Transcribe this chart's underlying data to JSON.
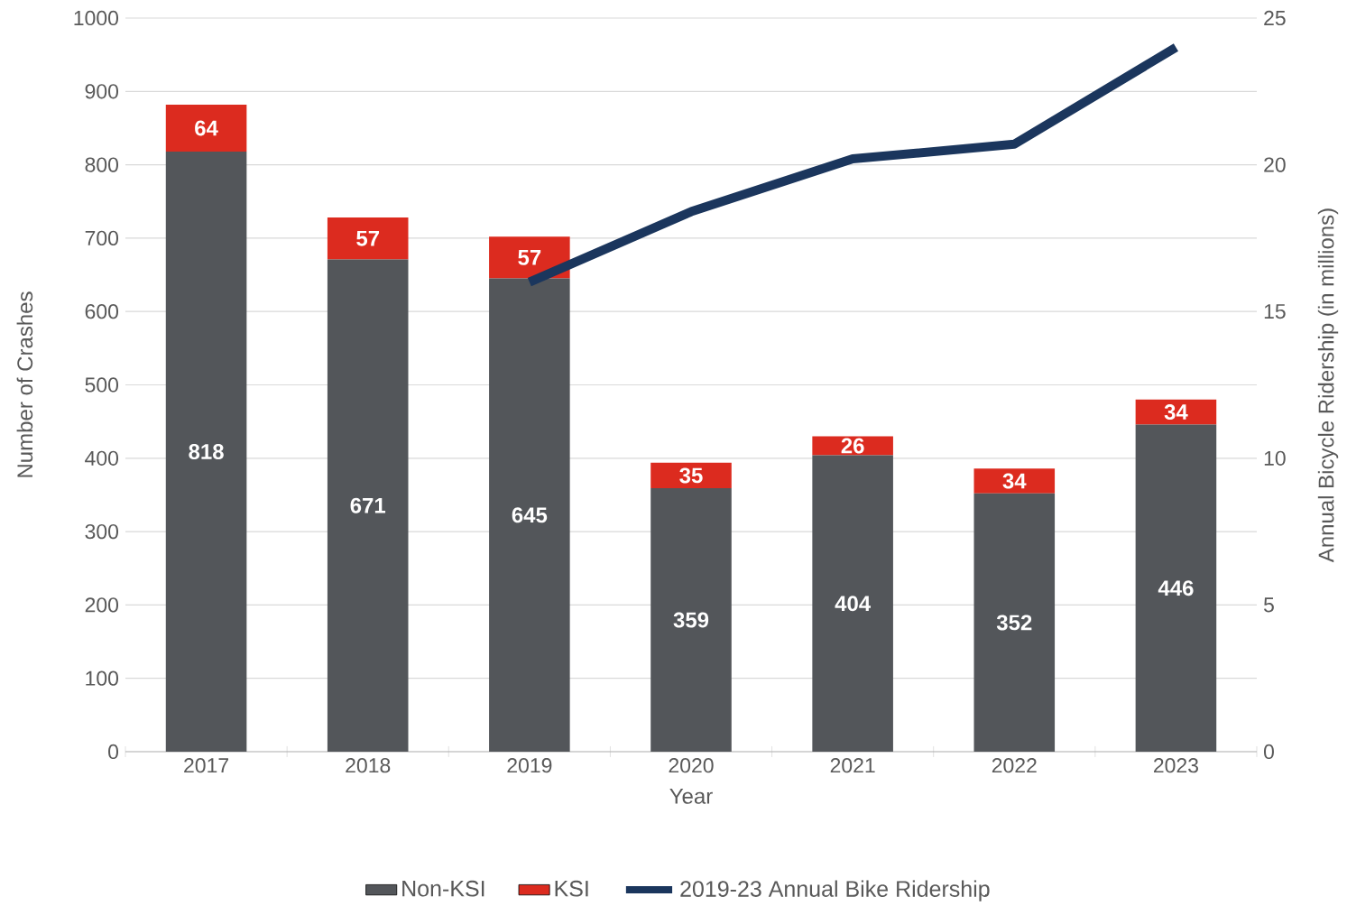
{
  "chart_data": {
    "type": "bar",
    "stacked": true,
    "categories": [
      "2017",
      "2018",
      "2019",
      "2020",
      "2021",
      "2022",
      "2023"
    ],
    "xlabel": "Year",
    "ylabel": "Number of Crashes",
    "y2label": "Annual Bicycle Ridership (in millions)",
    "ylim": [
      0,
      1000
    ],
    "yticks": [
      0,
      100,
      200,
      300,
      400,
      500,
      600,
      700,
      800,
      900,
      1000
    ],
    "y2lim": [
      0,
      25
    ],
    "y2ticks": [
      0,
      5,
      10,
      15,
      20,
      25
    ],
    "grid": "y",
    "legend": "bottom",
    "series": [
      {
        "name": "Non-KSI",
        "color": "#53565a",
        "values": [
          818,
          671,
          645,
          359,
          404,
          352,
          446
        ],
        "value_labels": [
          "818",
          "671",
          "645",
          "359",
          "404",
          "352",
          "446"
        ]
      },
      {
        "name": "KSI",
        "color": "#dc2b1f",
        "values": [
          64,
          57,
          57,
          35,
          26,
          34,
          34
        ],
        "value_labels": [
          "64",
          "57",
          "57",
          "35",
          "26",
          "34",
          "34"
        ]
      },
      {
        "name": "2019-23 Annual Bike Ridership",
        "type": "line",
        "axis": "y2",
        "color": "#1b365d",
        "values": [
          null,
          null,
          16.0,
          18.4,
          20.2,
          20.7,
          24.0
        ]
      }
    ]
  }
}
